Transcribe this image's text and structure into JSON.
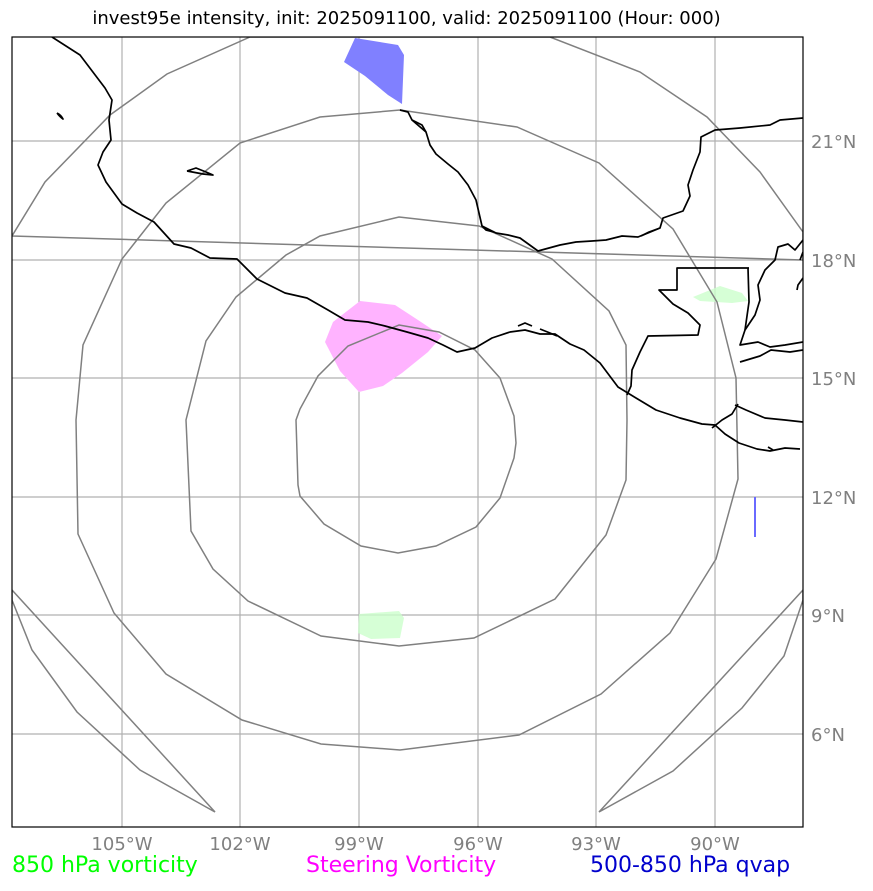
{
  "title": "invest95e intensity, init: 2025091100, valid: 2025091100 (Hour: 000)",
  "lon_labels": [
    "105°W",
    "102°W",
    "99°W",
    "96°W",
    "93°W",
    "90°W"
  ],
  "lat_labels": [
    "21°N",
    "18°N",
    "15°N",
    "12°N",
    "9°N",
    "6°N"
  ],
  "legend": {
    "vort850": "850 hPa vorticity",
    "steering": "Steering Vorticity",
    "qvap": "500-850 hPa qvap"
  },
  "colors": {
    "vort850": "#00ff00",
    "steering": "#ff00ff",
    "qvap": "#0000cc",
    "grid": "#b0b0b0",
    "rings": "#808080",
    "coast": "#000000",
    "tick_label": "#808080"
  },
  "map_extent": {
    "lon_min": -107.75,
    "lon_max": -87.75,
    "lat_min": 3.25,
    "lat_max": 23.25
  }
}
